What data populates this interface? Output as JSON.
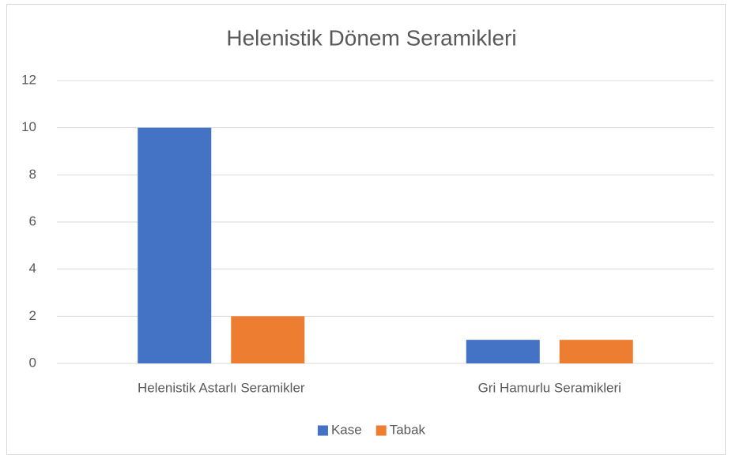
{
  "chart_data": {
    "type": "bar",
    "title": "Helenistik Dönem Seramikleri",
    "categories": [
      "Helenistik Astarlı Seramikler",
      "Gri Hamurlu Seramikleri"
    ],
    "series": [
      {
        "name": "Kase",
        "color": "#4472c4",
        "values": [
          10,
          1
        ]
      },
      {
        "name": "Tabak",
        "color": "#ed7d31",
        "values": [
          2,
          1
        ]
      }
    ],
    "ylim": [
      0,
      12
    ],
    "yticks": [
      0,
      2,
      4,
      6,
      8,
      10,
      12
    ],
    "grid": true,
    "legend": "bottom"
  }
}
